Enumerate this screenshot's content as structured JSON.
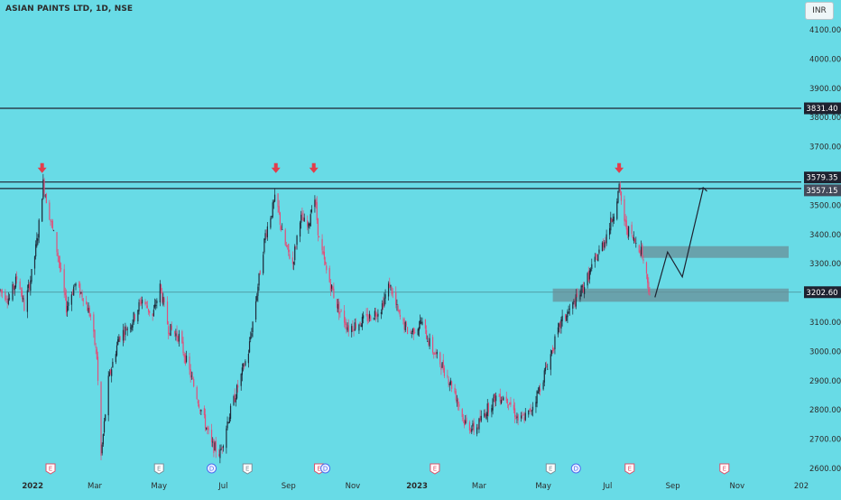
{
  "header": {
    "symbol_title": "ASIAN PAINTS LTD, 1D, NSE",
    "currency": "INR"
  },
  "chart_data": {
    "type": "candlestick",
    "title": "ASIAN PAINTS LTD, 1D, NSE",
    "currency": "INR",
    "ylim": [
      2600,
      4160
    ],
    "y_ticks": [
      "4100.00",
      "4000.00",
      "3900.00",
      "3800.00",
      "3700.00",
      "3600.00",
      "3500.00",
      "3400.00",
      "3300.00",
      "3200.00",
      "3100.00",
      "3000.00",
      "2900.00",
      "2800.00",
      "2700.00",
      "2600.00"
    ],
    "x_ticks": [
      "2022",
      "Mar",
      "May",
      "Jul",
      "Sep",
      "Nov",
      "2023",
      "Mar",
      "May",
      "Jul",
      "Sep",
      "Nov",
      "202"
    ],
    "price_labels": [
      {
        "value": 3831.4,
        "text": "3831.40",
        "color": "#1e2230"
      },
      {
        "value": 3579.35,
        "text": "3579.35",
        "color": "#1e2230"
      },
      {
        "value": 3557.15,
        "text": "3557.15",
        "color": "#444a5a"
      },
      {
        "value": 3202.6,
        "text": "3202.60",
        "color": "#1e2230"
      }
    ],
    "horizontal_lines": [
      3831.4,
      3579.35,
      3557.15
    ],
    "last_price_line": 3202.6,
    "zones": [
      {
        "y_from": 3320,
        "y_to": 3360,
        "x_from": "2023-08-01",
        "x_to": "2023-12-20"
      },
      {
        "y_from": 3170,
        "y_to": 3215,
        "x_from": "2023-05-10",
        "x_to": "2023-12-20"
      }
    ],
    "arrow_markers_x": [
      "2022-01-10",
      "2022-08-20",
      "2022-09-25",
      "2023-07-12"
    ],
    "projection_path": [
      {
        "x": "2023-08-15",
        "y": 3185
      },
      {
        "x": "2023-08-27",
        "y": 3340
      },
      {
        "x": "2023-09-10",
        "y": 3255
      },
      {
        "x": "2023-09-30",
        "y": 3560
      }
    ],
    "events": [
      {
        "x": "2022-01-18",
        "letter": "E",
        "color": "#e0506a"
      },
      {
        "x": "2022-05-01",
        "letter": "E",
        "color": "#7c8e99"
      },
      {
        "x": "2022-06-20",
        "letter": "D",
        "color": "#4d6cf0"
      },
      {
        "x": "2022-07-24",
        "letter": "E",
        "color": "#7c8e99"
      },
      {
        "x": "2022-09-30",
        "letter": "E",
        "color": "#e0506a"
      },
      {
        "x": "2022-10-06",
        "letter": "D",
        "color": "#4d6cf0"
      },
      {
        "x": "2023-01-18",
        "letter": "E",
        "color": "#e0506a"
      },
      {
        "x": "2023-05-08",
        "letter": "E",
        "color": "#7c8e99"
      },
      {
        "x": "2023-06-01",
        "letter": "D",
        "color": "#4d6cf0"
      },
      {
        "x": "2023-07-22",
        "letter": "E",
        "color": "#e0506a"
      },
      {
        "x": "2023-10-20",
        "letter": "E",
        "color": "#e0506a"
      }
    ],
    "price_path": [
      [
        "2021-12-01",
        3210
      ],
      [
        "2021-12-10",
        3180
      ],
      [
        "2021-12-18",
        3260
      ],
      [
        "2021-12-24",
        3150
      ],
      [
        "2022-01-01",
        3280
      ],
      [
        "2022-01-06",
        3400
      ],
      [
        "2022-01-11",
        3575
      ],
      [
        "2022-01-18",
        3450
      ],
      [
        "2022-01-25",
        3330
      ],
      [
        "2022-02-02",
        3150
      ],
      [
        "2022-02-10",
        3230
      ],
      [
        "2022-02-18",
        3190
      ],
      [
        "2022-02-25",
        3120
      ],
      [
        "2022-03-03",
        2980
      ],
      [
        "2022-03-07",
        2640
      ],
      [
        "2022-03-14",
        2900
      ],
      [
        "2022-03-24",
        3050
      ],
      [
        "2022-04-05",
        3100
      ],
      [
        "2022-04-15",
        3180
      ],
      [
        "2022-04-25",
        3120
      ],
      [
        "2022-05-02",
        3220
      ],
      [
        "2022-05-10",
        3080
      ],
      [
        "2022-05-20",
        3050
      ],
      [
        "2022-05-30",
        2930
      ],
      [
        "2022-06-10",
        2800
      ],
      [
        "2022-06-20",
        2680
      ],
      [
        "2022-06-28",
        2650
      ],
      [
        "2022-07-05",
        2760
      ],
      [
        "2022-07-15",
        2880
      ],
      [
        "2022-07-25",
        3000
      ],
      [
        "2022-08-02",
        3200
      ],
      [
        "2022-08-10",
        3400
      ],
      [
        "2022-08-20",
        3530
      ],
      [
        "2022-08-27",
        3380
      ],
      [
        "2022-09-05",
        3300
      ],
      [
        "2022-09-12",
        3460
      ],
      [
        "2022-09-20",
        3420
      ],
      [
        "2022-09-25",
        3560
      ],
      [
        "2022-09-30",
        3380
      ],
      [
        "2022-10-08",
        3260
      ],
      [
        "2022-10-18",
        3150
      ],
      [
        "2022-10-28",
        3080
      ],
      [
        "2022-11-08",
        3100
      ],
      [
        "2022-11-18",
        3120
      ],
      [
        "2022-11-28",
        3150
      ],
      [
        "2022-12-06",
        3230
      ],
      [
        "2022-12-15",
        3120
      ],
      [
        "2022-12-25",
        3060
      ],
      [
        "2023-01-05",
        3100
      ],
      [
        "2023-01-15",
        3010
      ],
      [
        "2023-01-25",
        2950
      ],
      [
        "2023-02-05",
        2870
      ],
      [
        "2023-02-15",
        2760
      ],
      [
        "2023-02-25",
        2730
      ],
      [
        "2023-03-08",
        2800
      ],
      [
        "2023-03-18",
        2850
      ],
      [
        "2023-03-28",
        2840
      ],
      [
        "2023-04-08",
        2760
      ],
      [
        "2023-04-18",
        2790
      ],
      [
        "2023-04-28",
        2880
      ],
      [
        "2023-05-08",
        2990
      ],
      [
        "2023-05-18",
        3100
      ],
      [
        "2023-05-28",
        3150
      ],
      [
        "2023-06-08",
        3220
      ],
      [
        "2023-06-18",
        3300
      ],
      [
        "2023-06-28",
        3380
      ],
      [
        "2023-07-05",
        3450
      ],
      [
        "2023-07-12",
        3555
      ],
      [
        "2023-07-18",
        3430
      ],
      [
        "2023-07-26",
        3380
      ],
      [
        "2023-08-02",
        3350
      ],
      [
        "2023-08-10",
        3203
      ]
    ]
  }
}
